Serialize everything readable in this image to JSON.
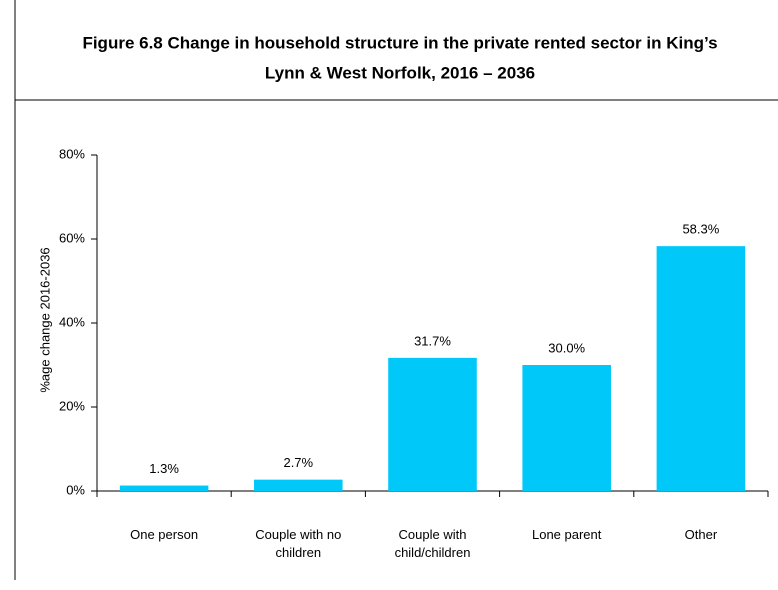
{
  "chart_data": {
    "type": "bar",
    "title_lines": [
      "Figure 6.8 Change in household structure in the private rented sector in King’s",
      "Lynn & West Norfolk, 2016 – 2036"
    ],
    "y_label": "%age change 2016-2036",
    "categories": [
      "One person",
      "Couple with no children",
      "Couple with child/children",
      "Lone parent",
      "Other"
    ],
    "values": [
      1.3,
      2.7,
      31.7,
      30.0,
      58.3
    ],
    "value_labels": [
      "1.3%",
      "2.7%",
      "31.7%",
      "30.0%",
      "58.3%"
    ],
    "color": "#00c8f8",
    "ylim": [
      0,
      80
    ],
    "yticks": [
      {
        "value": 0,
        "label": "0%"
      },
      {
        "value": 20,
        "label": "20%"
      },
      {
        "value": 40,
        "label": "40%"
      },
      {
        "value": 60,
        "label": "60%"
      },
      {
        "value": 80,
        "label": "80%"
      }
    ]
  }
}
